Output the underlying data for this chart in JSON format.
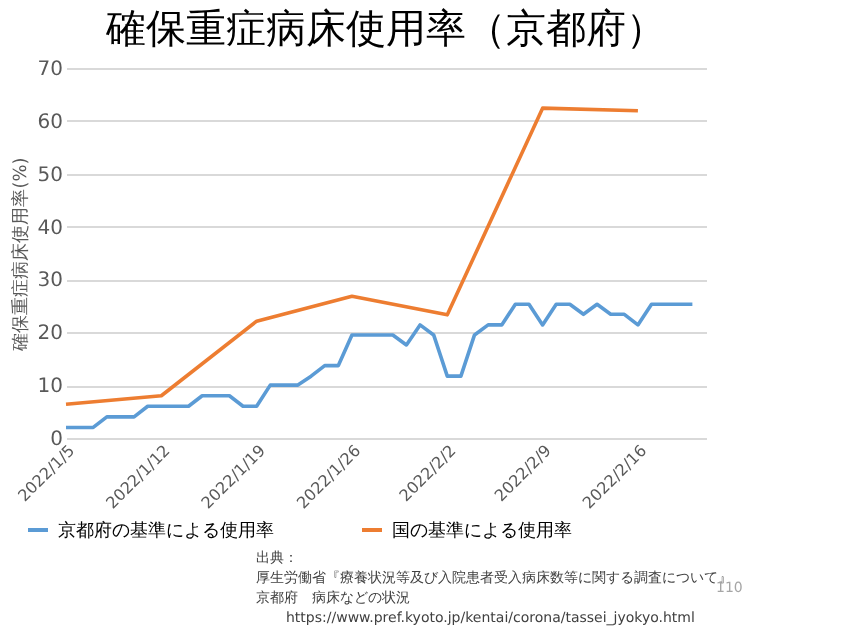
{
  "chart_data": {
    "type": "line",
    "title": "確保重症病床使用率（京都府）",
    "ylabel": "確保重症病床使用率(%)",
    "series": [
      {
        "name": "京都府の基準による使用率",
        "color": "#5b9bd5",
        "x": [
          "2022-01-05",
          "2022-01-06",
          "2022-01-07",
          "2022-01-08",
          "2022-01-09",
          "2022-01-10",
          "2022-01-11",
          "2022-01-12",
          "2022-01-13",
          "2022-01-14",
          "2022-01-15",
          "2022-01-16",
          "2022-01-17",
          "2022-01-18",
          "2022-01-19",
          "2022-01-20",
          "2022-01-21",
          "2022-01-22",
          "2022-01-23",
          "2022-01-24",
          "2022-01-25",
          "2022-01-26",
          "2022-01-27",
          "2022-01-28",
          "2022-01-29",
          "2022-01-30",
          "2022-01-31",
          "2022-02-01",
          "2022-02-02",
          "2022-02-03",
          "2022-02-04",
          "2022-02-05",
          "2022-02-06",
          "2022-02-07",
          "2022-02-08",
          "2022-02-09",
          "2022-02-10",
          "2022-02-11",
          "2022-02-12",
          "2022-02-13",
          "2022-02-14",
          "2022-02-15",
          "2022-02-16",
          "2022-02-17",
          "2022-02-18",
          "2022-02-19",
          "2022-02-20"
        ],
        "values": [
          2,
          2,
          2,
          4,
          4,
          4,
          6,
          6,
          6,
          6,
          8,
          8,
          8,
          6,
          6,
          10,
          10,
          10,
          11.7,
          13.7,
          13.7,
          19.5,
          19.5,
          19.5,
          19.5,
          17.6,
          21.4,
          19.5,
          11.7,
          11.7,
          19.5,
          21.4,
          21.4,
          25.3,
          25.3,
          21.4,
          25.3,
          25.3,
          23.4,
          25.3,
          23.4,
          23.4,
          21.4,
          25.3,
          25.3,
          25.3,
          25.3
        ]
      },
      {
        "name": "国の基準による使用率",
        "color": "#ed7d31",
        "x": [
          "2022-01-05",
          "2022-01-12",
          "2022-01-19",
          "2022-01-26",
          "2022-02-02",
          "2022-02-09",
          "2022-02-16"
        ],
        "values": [
          6.4,
          8,
          22.1,
          26.8,
          23.3,
          62.4,
          61.9
        ]
      }
    ],
    "xticks": [
      {
        "value": "2022-01-05",
        "label": "2022/1/5"
      },
      {
        "value": "2022-01-12",
        "label": "2022/1/12"
      },
      {
        "value": "2022-01-19",
        "label": "2022/1/19"
      },
      {
        "value": "2022-01-26",
        "label": "2022/1/26"
      },
      {
        "value": "2022-02-02",
        "label": "2022/2/2"
      },
      {
        "value": "2022-02-09",
        "label": "2022/2/9"
      },
      {
        "value": "2022-02-16",
        "label": "2022/2/16"
      }
    ],
    "xlim": [
      "2022-01-05",
      "2022-02-21"
    ],
    "ylim": [
      0,
      70
    ],
    "yticks": [
      0,
      10,
      20,
      30,
      40,
      50,
      60,
      70
    ],
    "grid": "y",
    "legend": "bottom",
    "annotations": [
      "出典：",
      "厚生労働省『療養状況等及び入院患者受入病床数等に関する調査について』",
      "京都府　病床などの状況",
      "https://www.pref.kyoto.jp/kentai/corona/tassei_jyokyo.html",
      "110"
    ]
  }
}
